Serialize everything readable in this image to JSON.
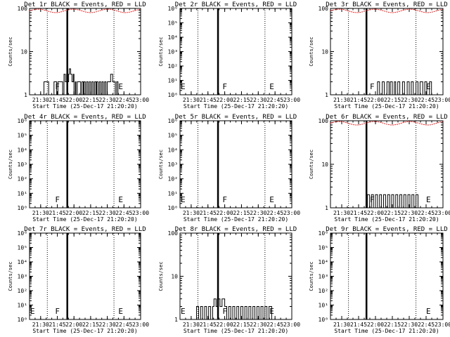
{
  "chart_data": [
    {
      "type": "line",
      "title": "Det 1r BLACK = Events, RED = LLD",
      "xlabel": "Start Time (25-Dec-17 21:20:20)",
      "ylabel": "Counts/sec",
      "y_scale": "log",
      "ylim": [
        1,
        100
      ],
      "y_ticks": [
        "1",
        "10",
        "100"
      ],
      "x_ticks": [
        "21:30",
        "21:45",
        "22:00",
        "22:15",
        "22:30",
        "22:45",
        "23:00"
      ],
      "markers": [
        {
          "label": "F",
          "time": "21:43"
        },
        {
          "label": "E",
          "time": "22:40"
        }
      ],
      "flare_time": "21:54",
      "lld": true,
      "events": "A"
    },
    {
      "type": "line",
      "title": "Det 2r BLACK = Events, RED = LLD",
      "xlabel": "Start Time (25-Dec-17 21:20:20)",
      "ylabel": "Counts/sec",
      "y_scale": "log",
      "ylim": [
        1,
        1000000
      ],
      "y_ticks": [
        "10⁰",
        "10¹",
        "10²",
        "10³",
        "10⁴",
        "10⁵",
        "10⁶"
      ],
      "x_ticks": [
        "21:30",
        "21:45",
        "22:00",
        "22:15",
        "22:30",
        "22:45",
        "23:00"
      ],
      "markers": [
        {
          "label": "E",
          "time": "21:17"
        },
        {
          "label": "F",
          "time": "21:58"
        },
        {
          "label": "E",
          "time": "22:40"
        }
      ],
      "flare_time": "21:54",
      "lld": false,
      "events": null
    },
    {
      "type": "line",
      "title": "Det 3r BLACK = Events, RED = LLD",
      "xlabel": "Start Time (25-Dec-17 21:20:20)",
      "ylabel": "Counts/sec",
      "y_scale": "log",
      "ylim": [
        1,
        100
      ],
      "y_ticks": [
        "1",
        "10",
        "100"
      ],
      "x_ticks": [
        "21:30",
        "21:45",
        "22:00",
        "22:15",
        "22:30",
        "22:45",
        "23:00"
      ],
      "markers": [
        {
          "label": "F",
          "time": "21:55"
        },
        {
          "label": "E",
          "time": "22:45"
        }
      ],
      "flare_time": "21:52",
      "lld": true,
      "events": "B"
    },
    {
      "type": "line",
      "title": "Det 4r BLACK = Events, RED = LLD",
      "xlabel": "Start Time (25-Dec-17 21:20:20)",
      "ylabel": "Counts/sec",
      "y_scale": "log",
      "ylim": [
        1,
        1000000
      ],
      "y_ticks": [
        "10⁰",
        "10¹",
        "10²",
        "10³",
        "10⁴",
        "10⁵",
        "10⁶"
      ],
      "x_ticks": [
        "21:30",
        "21:45",
        "22:00",
        "22:15",
        "22:30",
        "22:45",
        "23:00"
      ],
      "markers": [
        {
          "label": "F",
          "time": "21:43"
        },
        {
          "label": "E",
          "time": "22:40"
        }
      ],
      "flare_time": "21:54",
      "lld": false,
      "events": null
    },
    {
      "type": "line",
      "title": "Det 5r BLACK = Events, RED = LLD",
      "xlabel": "Start Time (25-Dec-17 21:20:20)",
      "ylabel": "Counts/sec",
      "y_scale": "log",
      "ylim": [
        1,
        1000000
      ],
      "y_ticks": [
        "10⁰",
        "10¹",
        "10²",
        "10³",
        "10⁴",
        "10⁵",
        "10⁶"
      ],
      "x_ticks": [
        "21:30",
        "21:45",
        "22:00",
        "22:15",
        "22:30",
        "22:45",
        "23:00"
      ],
      "markers": [
        {
          "label": "E",
          "time": "21:17"
        },
        {
          "label": "F",
          "time": "21:58"
        },
        {
          "label": "E",
          "time": "22:40"
        }
      ],
      "flare_time": "21:54",
      "lld": false,
      "events": null
    },
    {
      "type": "line",
      "title": "Det 6r BLACK = Events, RED = LLD",
      "xlabel": "Start Time (25-Dec-17 21:20:20)",
      "ylabel": "Counts/sec",
      "y_scale": "log",
      "ylim": [
        1,
        100
      ],
      "y_ticks": [
        "1",
        "10",
        "100"
      ],
      "x_ticks": [
        "21:30",
        "21:45",
        "22:00",
        "22:15",
        "22:30",
        "22:45",
        "23:00"
      ],
      "markers": [
        {
          "label": "F",
          "time": "21:55"
        },
        {
          "label": "E",
          "time": "22:45"
        }
      ],
      "flare_time": "21:52",
      "lld": true,
      "events": "C"
    },
    {
      "type": "line",
      "title": "Det 7r BLACK = Events, RED = LLD",
      "xlabel": "Start Time (25-Dec-17 21:20:20)",
      "ylabel": "Counts/sec",
      "y_scale": "log",
      "ylim": [
        1,
        1000000
      ],
      "y_ticks": [
        "10⁰",
        "10¹",
        "10²",
        "10³",
        "10⁴",
        "10⁵",
        "10⁶"
      ],
      "x_ticks": [
        "21:30",
        "21:45",
        "22:00",
        "22:15",
        "22:30",
        "22:45",
        "23:00"
      ],
      "markers": [
        {
          "label": "E",
          "time": "21:17"
        },
        {
          "label": "F",
          "time": "21:43"
        },
        {
          "label": "E",
          "time": "22:40"
        }
      ],
      "flare_time": "21:54",
      "lld": false,
      "events": null
    },
    {
      "type": "line",
      "title": "Det 8r BLACK = Events, RED = LLD",
      "xlabel": "Start Time (25-Dec-17 21:20:20)",
      "ylabel": "Counts/sec",
      "y_scale": "log",
      "ylim": [
        1,
        100
      ],
      "y_ticks": [
        "1",
        "10",
        "100"
      ],
      "x_ticks": [
        "21:30",
        "21:45",
        "22:00",
        "22:15",
        "22:30",
        "22:45",
        "23:00"
      ],
      "markers": [
        {
          "label": "E",
          "time": "21:17"
        },
        {
          "label": "F",
          "time": "21:58"
        },
        {
          "label": "E",
          "time": "22:40"
        }
      ],
      "flare_time": "21:54",
      "lld": false,
      "events": "D"
    },
    {
      "type": "line",
      "title": "Det 9r BLACK = Events, RED = LLD",
      "xlabel": "Start Time (25-Dec-17 21:20:20)",
      "ylabel": "Counts/sec",
      "y_scale": "log",
      "ylim": [
        1,
        1000000
      ],
      "y_ticks": [
        "10⁰",
        "10¹",
        "10²",
        "10³",
        "10⁴",
        "10⁵",
        "10⁶"
      ],
      "x_ticks": [
        "21:30",
        "21:45",
        "22:00",
        "22:15",
        "22:30",
        "22:45",
        "23:00"
      ],
      "markers": [
        {
          "label": "E",
          "time": "22:45"
        }
      ],
      "flare_time": "21:52",
      "lld": false,
      "events": null
    }
  ],
  "series_data": {
    "A": [
      [
        21.55,
        2
      ],
      [
        21.62,
        1
      ],
      [
        21.7,
        2
      ],
      [
        21.74,
        1
      ],
      [
        21.76,
        2
      ],
      [
        21.83,
        1
      ],
      [
        21.85,
        3
      ],
      [
        21.87,
        2
      ],
      [
        21.89,
        3
      ],
      [
        21.9,
        2
      ],
      [
        21.92,
        3
      ],
      [
        21.93,
        4
      ],
      [
        21.95,
        3
      ],
      [
        21.97,
        2
      ],
      [
        21.99,
        3
      ],
      [
        22.0,
        1
      ],
      [
        22.02,
        2
      ],
      [
        22.03,
        1
      ],
      [
        22.05,
        2
      ],
      [
        22.1,
        1
      ],
      [
        22.12,
        2
      ],
      [
        22.14,
        1
      ],
      [
        22.15,
        2
      ],
      [
        22.17,
        1
      ],
      [
        22.19,
        2
      ],
      [
        22.21,
        1
      ],
      [
        22.23,
        2
      ],
      [
        22.25,
        1
      ],
      [
        22.27,
        2
      ],
      [
        22.29,
        1
      ],
      [
        22.31,
        2
      ],
      [
        22.33,
        1
      ],
      [
        22.34,
        2
      ],
      [
        22.36,
        1
      ],
      [
        22.38,
        2
      ],
      [
        22.4,
        1
      ],
      [
        22.42,
        2
      ],
      [
        22.44,
        1
      ],
      [
        22.46,
        2
      ],
      [
        22.48,
        1
      ],
      [
        22.5,
        2
      ],
      [
        22.55,
        3
      ],
      [
        22.58,
        2
      ],
      [
        22.62,
        1
      ],
      [
        22.64,
        2
      ],
      [
        22.66,
        1
      ]
    ],
    "B": [
      [
        22.0,
        1
      ],
      [
        22.03,
        2
      ],
      [
        22.06,
        1
      ],
      [
        22.1,
        2
      ],
      [
        22.13,
        1
      ],
      [
        22.17,
        2
      ],
      [
        22.2,
        1
      ],
      [
        22.22,
        2
      ],
      [
        22.25,
        1
      ],
      [
        22.28,
        2
      ],
      [
        22.3,
        1
      ],
      [
        22.33,
        2
      ],
      [
        22.36,
        1
      ],
      [
        22.4,
        2
      ],
      [
        22.43,
        1
      ],
      [
        22.47,
        2
      ],
      [
        22.5,
        1
      ],
      [
        22.53,
        2
      ],
      [
        22.56,
        1
      ],
      [
        22.6,
        2
      ],
      [
        22.63,
        1
      ],
      [
        22.66,
        2
      ],
      [
        22.7,
        1
      ],
      [
        22.73,
        2
      ],
      [
        22.76,
        1
      ],
      [
        22.8,
        2
      ],
      [
        22.83,
        1
      ]
    ],
    "C": [
      [
        21.85,
        1
      ],
      [
        21.88,
        2
      ],
      [
        21.91,
        1
      ],
      [
        21.94,
        2
      ],
      [
        21.97,
        1
      ],
      [
        22.0,
        2
      ],
      [
        22.03,
        1
      ],
      [
        22.06,
        2
      ],
      [
        22.09,
        1
      ],
      [
        22.12,
        2
      ],
      [
        22.15,
        1
      ],
      [
        22.18,
        2
      ],
      [
        22.21,
        1
      ],
      [
        22.24,
        2
      ],
      [
        22.27,
        1
      ],
      [
        22.3,
        2
      ],
      [
        22.33,
        1
      ],
      [
        22.36,
        2
      ],
      [
        22.39,
        1
      ],
      [
        22.42,
        2
      ],
      [
        22.45,
        1
      ],
      [
        22.48,
        2
      ],
      [
        22.51,
        1
      ],
      [
        22.54,
        2
      ],
      [
        22.57,
        1
      ],
      [
        22.6,
        2
      ],
      [
        22.63,
        1
      ],
      [
        22.7,
        1
      ]
    ],
    "D": [
      [
        21.55,
        1
      ],
      [
        21.58,
        2
      ],
      [
        21.61,
        1
      ],
      [
        21.64,
        2
      ],
      [
        21.67,
        1
      ],
      [
        21.7,
        2
      ],
      [
        21.73,
        1
      ],
      [
        21.76,
        2
      ],
      [
        21.79,
        1
      ],
      [
        21.82,
        2
      ],
      [
        21.84,
        3
      ],
      [
        21.87,
        2
      ],
      [
        21.89,
        3
      ],
      [
        21.93,
        2
      ],
      [
        21.96,
        3
      ],
      [
        22.0,
        2
      ],
      [
        22.03,
        1
      ],
      [
        22.06,
        2
      ],
      [
        22.09,
        1
      ],
      [
        22.12,
        2
      ],
      [
        22.15,
        1
      ],
      [
        22.18,
        2
      ],
      [
        22.21,
        1
      ],
      [
        22.24,
        2
      ],
      [
        22.27,
        1
      ],
      [
        22.3,
        2
      ],
      [
        22.33,
        1
      ],
      [
        22.36,
        2
      ],
      [
        22.39,
        1
      ],
      [
        22.42,
        2
      ],
      [
        22.45,
        1
      ],
      [
        22.48,
        2
      ],
      [
        22.51,
        1
      ],
      [
        22.54,
        2
      ],
      [
        22.57,
        1
      ],
      [
        22.6,
        2
      ],
      [
        22.63,
        1
      ],
      [
        22.66,
        2
      ],
      [
        22.7,
        1
      ]
    ]
  },
  "colors": {
    "events": "#000000",
    "lld": "#e02020",
    "axes": "#000000"
  }
}
